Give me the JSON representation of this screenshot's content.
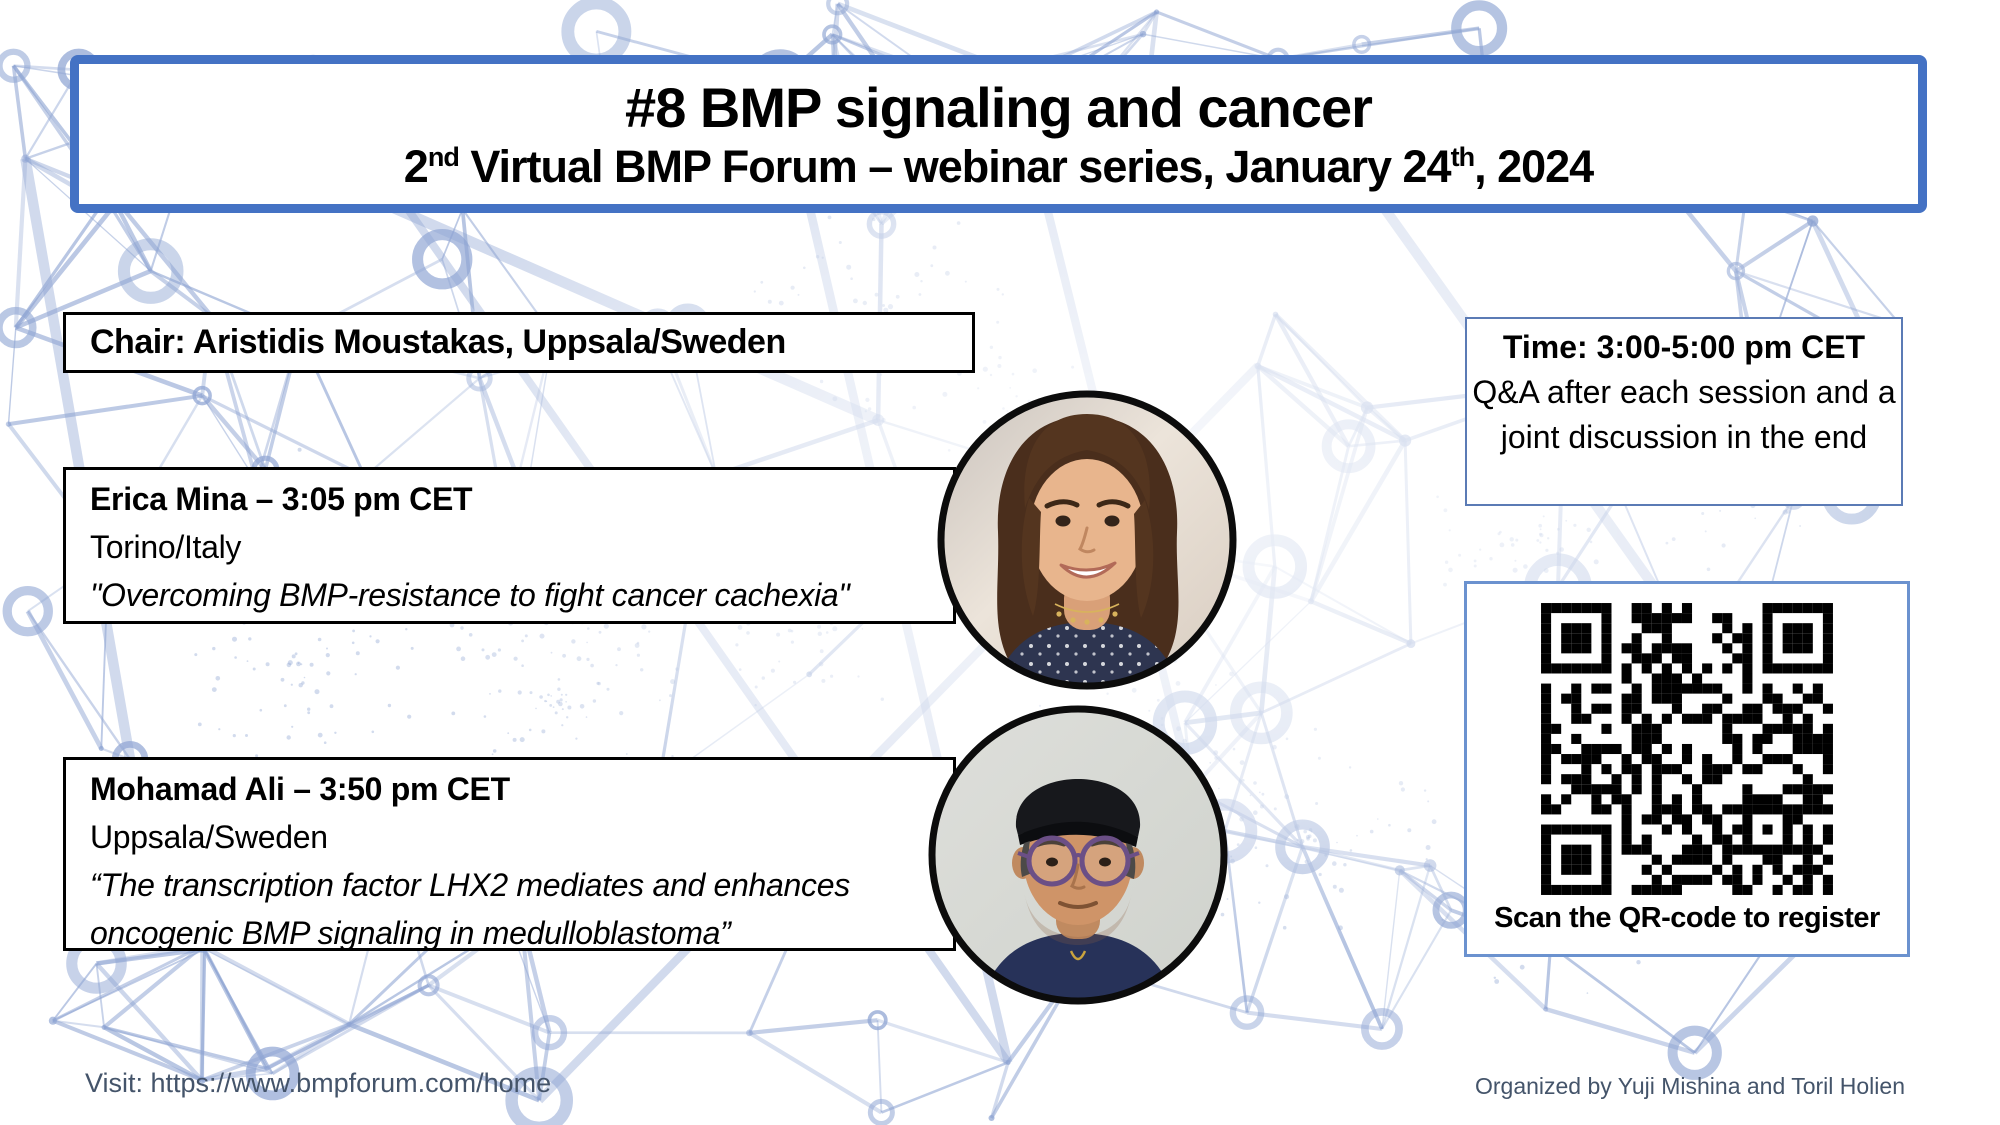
{
  "colors": {
    "accent_blue": "#4472C4",
    "box_border_black": "#000000",
    "time_box_border": "#5b7bb5",
    "qr_box_border": "#6b92cf",
    "footer_text": "#44546A",
    "network_pattern": "#8fa5d3"
  },
  "title_box": {
    "title": "#8 BMP signaling and cancer",
    "subtitle_prefix": "2",
    "subtitle_sup1": "nd",
    "subtitle_mid": " Virtual BMP Forum – webinar series, January 24",
    "subtitle_sup2": "th",
    "subtitle_suffix": ", 2024"
  },
  "chair_box": {
    "text": "Chair: Aristidis Moustakas, Uppsala/Sweden"
  },
  "speakers": [
    {
      "name_time": "Erica Mina – 3:05 pm CET",
      "location": "Torino/Italy",
      "talk": "\"Overcoming BMP-resistance to fight cancer cachexia\"",
      "photo": "woman-long-brown-hair-smiling"
    },
    {
      "name_time": "Mohamad Ali – 3:50 pm CET",
      "location": "Uppsala/Sweden",
      "talk": "“The transcription factor LHX2 mediates and enhances oncogenic BMP signaling in medulloblastoma”",
      "photo": "man-black-cap-glasses-navy-shirt"
    }
  ],
  "time_box": {
    "heading": "Time: 3:00-5:00 pm CET",
    "details": "Q&A after each session and a joint discussion in the end"
  },
  "qr_box": {
    "caption": "Scan the QR-code to register"
  },
  "footer": {
    "visit": "Visit: https://www.bmpforum.com/home",
    "organizers": "Organized by Yuji Mishina and Toril Holien"
  }
}
